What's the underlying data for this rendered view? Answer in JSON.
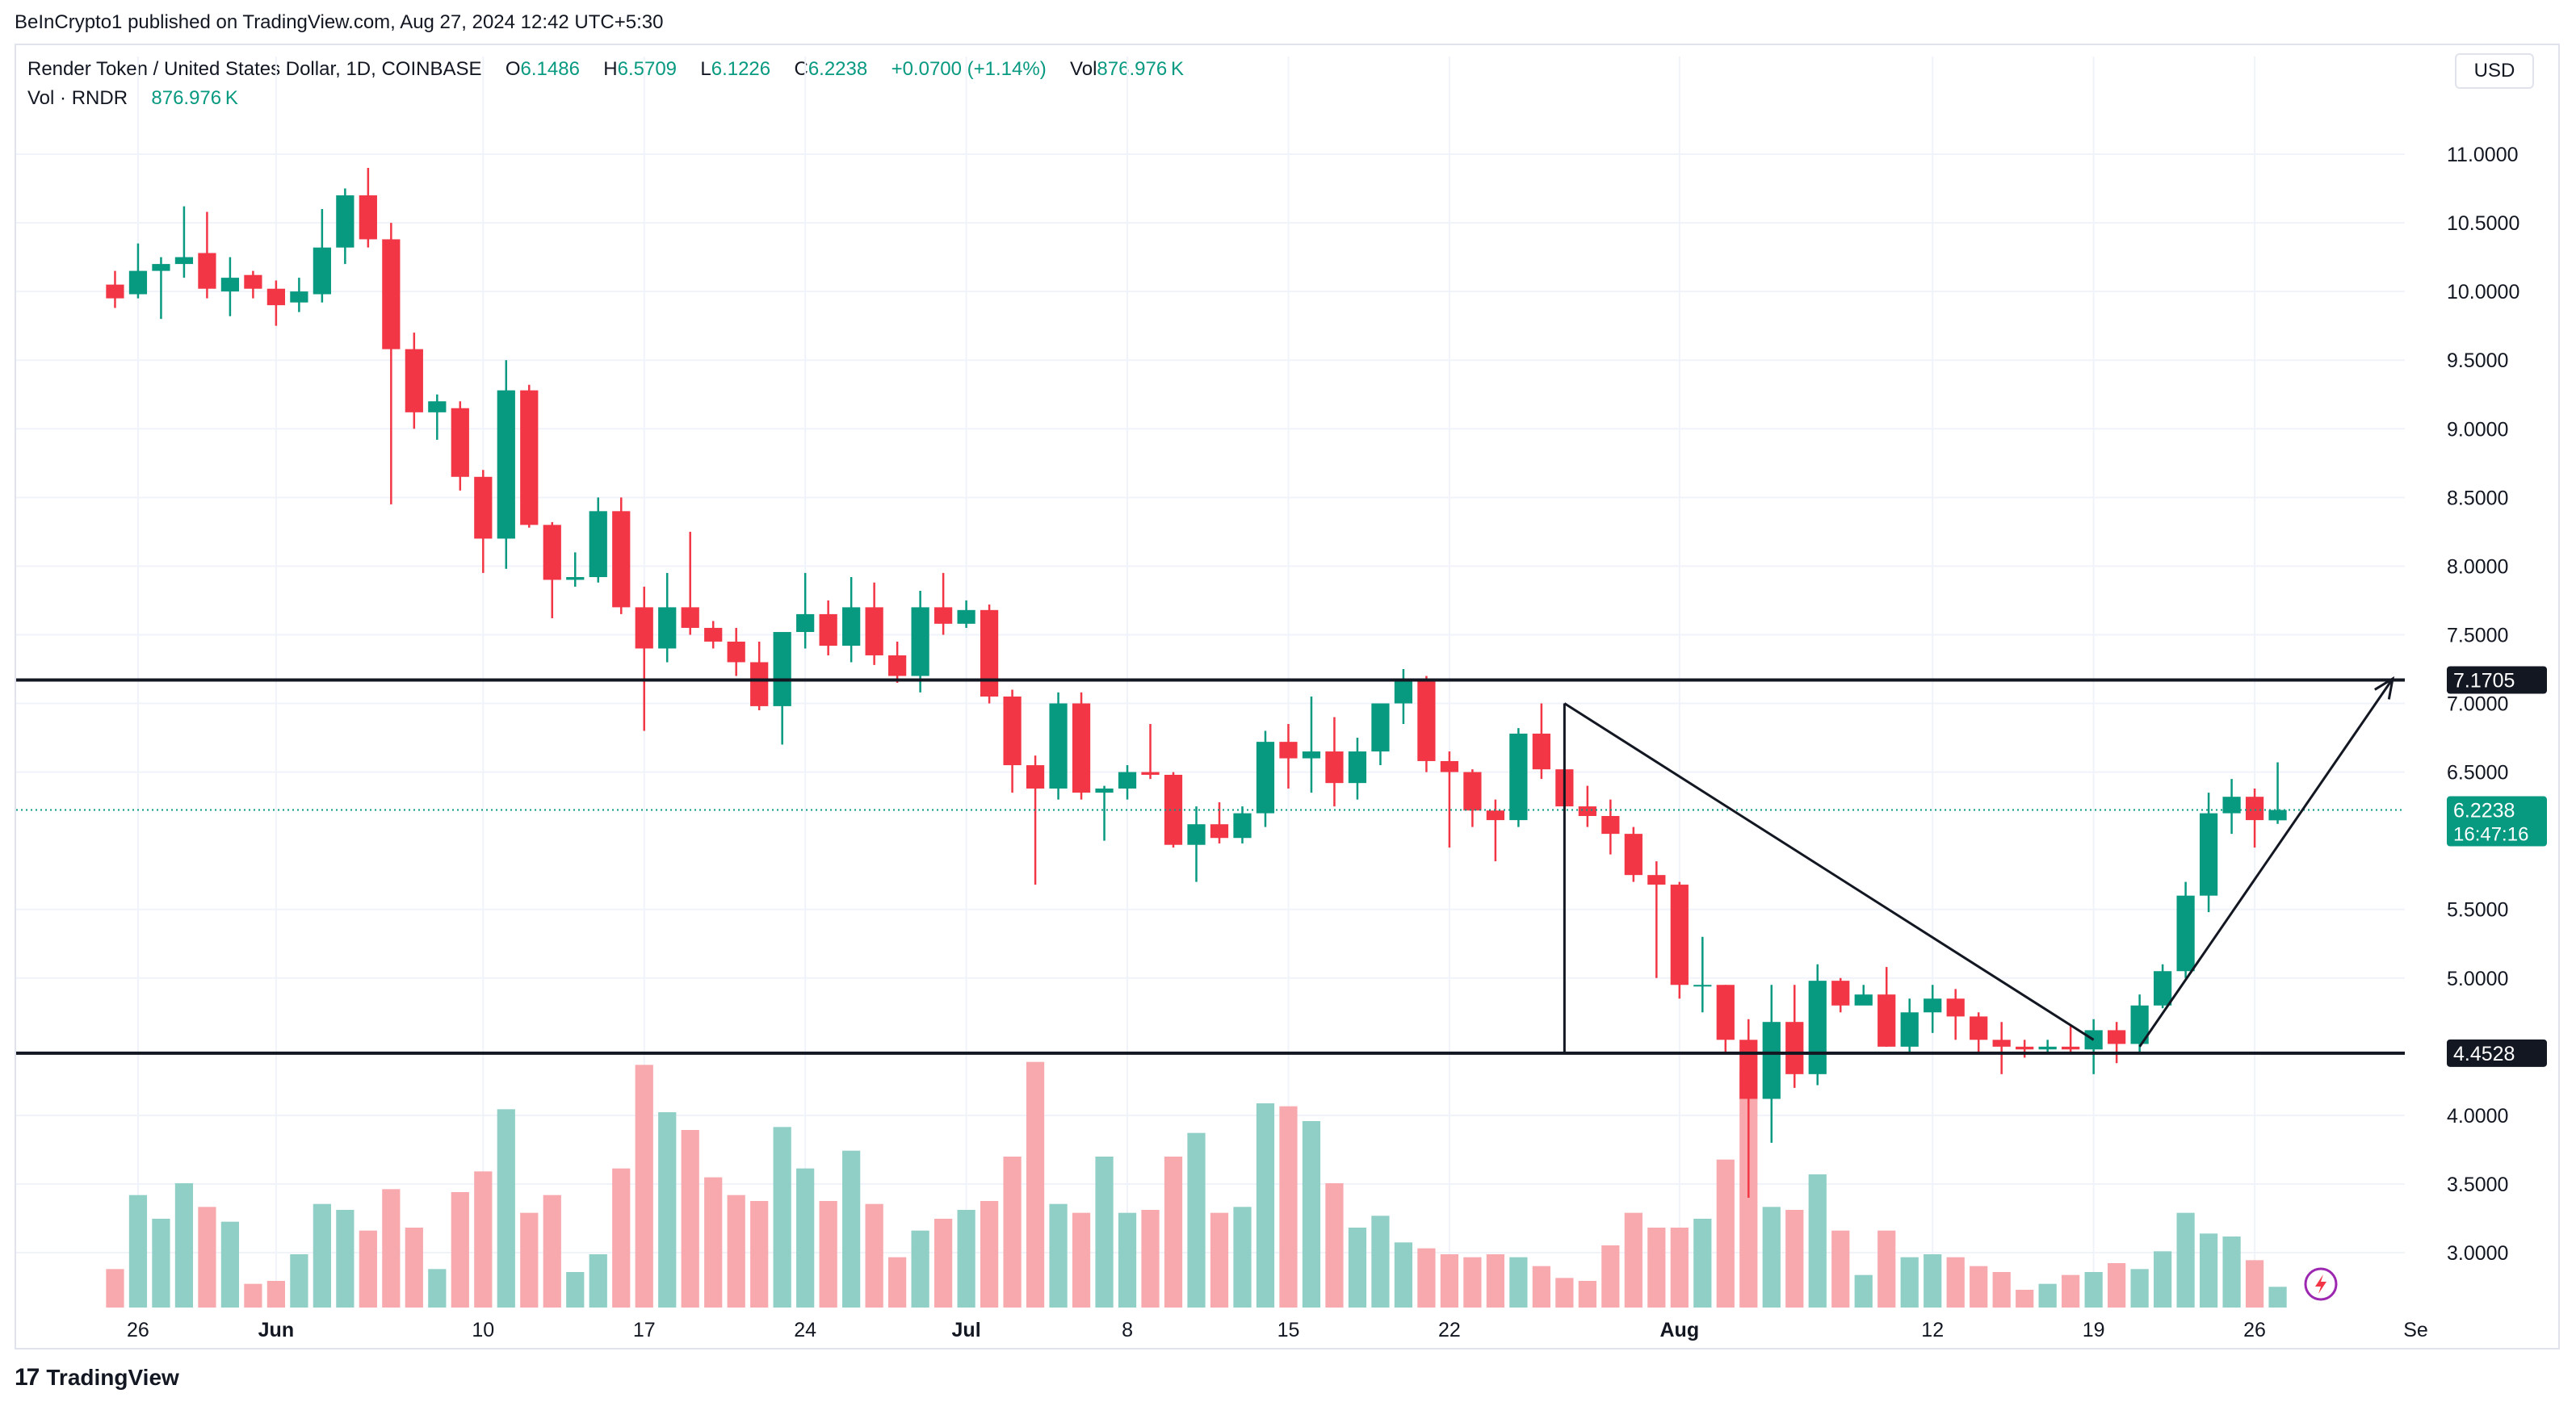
{
  "header": {
    "published": "BeInCrypto1 published on TradingView.com, Aug 27, 2024 12:42 UTC+5:30"
  },
  "legend": {
    "symbol": "Render Token / United States Dollar, 1D, COINBASE",
    "o_label": "O",
    "o": "6.1486",
    "h_label": "H",
    "h": "6.5709",
    "l_label": "L",
    "l": "6.1226",
    "c_label": "C",
    "c": "6.2238",
    "change": "+0.0700 (+1.14%)",
    "vol_label": "Vol",
    "vol": "876.976 K",
    "vol_row_label": "Vol · RNDR",
    "vol_row_value": "876.976 K"
  },
  "currency": "USD",
  "footer": {
    "brand": "TradingView",
    "logo_icon": "tradingview-logo-icon"
  },
  "chart_data": {
    "type": "candlestick",
    "title": "Render Token / United States Dollar, 1D, COINBASE",
    "ylim": [
      2.6,
      11.5
    ],
    "y_ticks": [
      "11.0000",
      "10.5000",
      "10.0000",
      "9.5000",
      "9.0000",
      "8.5000",
      "8.0000",
      "7.5000",
      "7.0000",
      "6.5000",
      "5.5000",
      "5.0000",
      "4.0000",
      "3.5000",
      "3.0000"
    ],
    "x_ticks": [
      {
        "date": "2024-05-26",
        "label": "26"
      },
      {
        "date": "2024-06-01",
        "label": "Jun"
      },
      {
        "date": "2024-06-10",
        "label": "10"
      },
      {
        "date": "2024-06-17",
        "label": "17"
      },
      {
        "date": "2024-06-24",
        "label": "24"
      },
      {
        "date": "2024-07-01",
        "label": "Jul"
      },
      {
        "date": "2024-07-08",
        "label": "8"
      },
      {
        "date": "2024-07-15",
        "label": "15"
      },
      {
        "date": "2024-07-22",
        "label": "22"
      },
      {
        "date": "2024-08-01",
        "label": "Aug"
      },
      {
        "date": "2024-08-12",
        "label": "12"
      },
      {
        "date": "2024-08-19",
        "label": "19"
      },
      {
        "date": "2024-08-26",
        "label": "26"
      },
      {
        "date": "2024-09-02",
        "label": "Se"
      }
    ],
    "colors": {
      "up": "#089981",
      "down": "#f23645",
      "vol_up": "#8fcfc6",
      "vol_down": "#f7a9ae",
      "line": "#131722"
    },
    "price_labels": [
      {
        "value": 7.1705,
        "text": "7.1705",
        "style": "dark"
      },
      {
        "value": 4.4528,
        "text": "4.4528",
        "style": "dark"
      },
      {
        "value": 6.2238,
        "text": "6.2238",
        "sub": "16:47:16",
        "style": "last"
      }
    ],
    "horizontal_lines": [
      7.1705,
      4.4528
    ],
    "last_price": 6.2238,
    "drawings": [
      {
        "type": "line",
        "from": {
          "date": "2024-07-27",
          "price": 7.0
        },
        "to": {
          "date": "2024-07-27",
          "price": 4.4528
        }
      },
      {
        "type": "line",
        "from": {
          "date": "2024-07-27",
          "price": 7.0
        },
        "to": {
          "date": "2024-08-19",
          "price": 4.55
        }
      },
      {
        "type": "arrow",
        "from": {
          "date": "2024-08-21",
          "price": 4.5
        },
        "to": {
          "date": "2024-09-01",
          "price": 7.18
        }
      }
    ],
    "volume_scale_max": 4.5,
    "candles": [
      {
        "date": "2024-05-25",
        "o": 10.05,
        "h": 10.15,
        "l": 9.88,
        "c": 9.95,
        "v": 0.65
      },
      {
        "date": "2024-05-26",
        "o": 9.98,
        "h": 10.35,
        "l": 9.95,
        "c": 10.15,
        "v": 1.9
      },
      {
        "date": "2024-05-27",
        "o": 10.15,
        "h": 10.25,
        "l": 9.8,
        "c": 10.2,
        "v": 1.5
      },
      {
        "date": "2024-05-28",
        "o": 10.2,
        "h": 10.62,
        "l": 10.1,
        "c": 10.25,
        "v": 2.1
      },
      {
        "date": "2024-05-29",
        "o": 10.28,
        "h": 10.58,
        "l": 9.95,
        "c": 10.02,
        "v": 1.7
      },
      {
        "date": "2024-05-30",
        "o": 10.0,
        "h": 10.25,
        "l": 9.82,
        "c": 10.1,
        "v": 1.45
      },
      {
        "date": "2024-05-31",
        "o": 10.12,
        "h": 10.15,
        "l": 9.95,
        "c": 10.02,
        "v": 0.4
      },
      {
        "date": "2024-06-01",
        "o": 10.02,
        "h": 10.08,
        "l": 9.75,
        "c": 9.9,
        "v": 0.45
      },
      {
        "date": "2024-06-02",
        "o": 9.92,
        "h": 10.1,
        "l": 9.85,
        "c": 10.0,
        "v": 0.9
      },
      {
        "date": "2024-06-03",
        "o": 9.98,
        "h": 10.6,
        "l": 9.92,
        "c": 10.32,
        "v": 1.75
      },
      {
        "date": "2024-06-04",
        "o": 10.32,
        "h": 10.75,
        "l": 10.2,
        "c": 10.7,
        "v": 1.65
      },
      {
        "date": "2024-06-05",
        "o": 10.7,
        "h": 10.9,
        "l": 10.32,
        "c": 10.38,
        "v": 1.3
      },
      {
        "date": "2024-06-06",
        "o": 10.38,
        "h": 10.5,
        "l": 8.45,
        "c": 9.58,
        "v": 2.0
      },
      {
        "date": "2024-06-07",
        "o": 9.58,
        "h": 9.7,
        "l": 9.0,
        "c": 9.12,
        "v": 1.35
      },
      {
        "date": "2024-06-08",
        "o": 9.12,
        "h": 9.25,
        "l": 8.92,
        "c": 9.2,
        "v": 0.65
      },
      {
        "date": "2024-06-09",
        "o": 9.15,
        "h": 9.2,
        "l": 8.55,
        "c": 8.65,
        "v": 1.95
      },
      {
        "date": "2024-06-10",
        "o": 8.65,
        "h": 8.7,
        "l": 7.95,
        "c": 8.2,
        "v": 2.3
      },
      {
        "date": "2024-06-11",
        "o": 8.2,
        "h": 9.5,
        "l": 7.98,
        "c": 9.28,
        "v": 3.35
      },
      {
        "date": "2024-06-12",
        "o": 9.28,
        "h": 9.32,
        "l": 8.28,
        "c": 8.3,
        "v": 1.6
      },
      {
        "date": "2024-06-13",
        "o": 8.3,
        "h": 8.32,
        "l": 7.62,
        "c": 7.9,
        "v": 1.9
      },
      {
        "date": "2024-06-14",
        "o": 7.9,
        "h": 8.1,
        "l": 7.85,
        "c": 7.92,
        "v": 0.6
      },
      {
        "date": "2024-06-15",
        "o": 7.92,
        "h": 8.5,
        "l": 7.88,
        "c": 8.4,
        "v": 0.9
      },
      {
        "date": "2024-06-16",
        "o": 8.4,
        "h": 8.5,
        "l": 7.65,
        "c": 7.7,
        "v": 2.35
      },
      {
        "date": "2024-06-17",
        "o": 7.7,
        "h": 7.85,
        "l": 6.8,
        "c": 7.4,
        "v": 4.1
      },
      {
        "date": "2024-06-18",
        "o": 7.4,
        "h": 7.95,
        "l": 7.3,
        "c": 7.7,
        "v": 3.3
      },
      {
        "date": "2024-06-19",
        "o": 7.7,
        "h": 8.25,
        "l": 7.5,
        "c": 7.55,
        "v": 3.0
      },
      {
        "date": "2024-06-20",
        "o": 7.55,
        "h": 7.6,
        "l": 7.4,
        "c": 7.45,
        "v": 2.2
      },
      {
        "date": "2024-06-21",
        "o": 7.45,
        "h": 7.55,
        "l": 7.2,
        "c": 7.3,
        "v": 1.9
      },
      {
        "date": "2024-06-22",
        "o": 7.3,
        "h": 7.45,
        "l": 6.95,
        "c": 6.98,
        "v": 1.8
      },
      {
        "date": "2024-06-23",
        "o": 6.98,
        "h": 7.5,
        "l": 6.7,
        "c": 7.52,
        "v": 3.05
      },
      {
        "date": "2024-06-24",
        "o": 7.52,
        "h": 7.95,
        "l": 7.4,
        "c": 7.65,
        "v": 2.35
      },
      {
        "date": "2024-06-25",
        "o": 7.65,
        "h": 7.75,
        "l": 7.35,
        "c": 7.42,
        "v": 1.8
      },
      {
        "date": "2024-06-26",
        "o": 7.42,
        "h": 7.92,
        "l": 7.3,
        "c": 7.7,
        "v": 2.65
      },
      {
        "date": "2024-06-27",
        "o": 7.7,
        "h": 7.88,
        "l": 7.28,
        "c": 7.35,
        "v": 1.75
      },
      {
        "date": "2024-06-28",
        "o": 7.35,
        "h": 7.45,
        "l": 7.15,
        "c": 7.2,
        "v": 0.85
      },
      {
        "date": "2024-06-29",
        "o": 7.2,
        "h": 7.82,
        "l": 7.08,
        "c": 7.7,
        "v": 1.3
      },
      {
        "date": "2024-06-30",
        "o": 7.7,
        "h": 7.95,
        "l": 7.5,
        "c": 7.58,
        "v": 1.5
      },
      {
        "date": "2024-07-01",
        "o": 7.58,
        "h": 7.75,
        "l": 7.55,
        "c": 7.68,
        "v": 1.65
      },
      {
        "date": "2024-07-02",
        "o": 7.68,
        "h": 7.72,
        "l": 7.0,
        "c": 7.05,
        "v": 1.8
      },
      {
        "date": "2024-07-03",
        "o": 7.05,
        "h": 7.1,
        "l": 6.35,
        "c": 6.55,
        "v": 2.55
      },
      {
        "date": "2024-07-04",
        "o": 6.55,
        "h": 6.62,
        "l": 5.68,
        "c": 6.38,
        "v": 4.15
      },
      {
        "date": "2024-07-05",
        "o": 6.38,
        "h": 7.08,
        "l": 6.3,
        "c": 7.0,
        "v": 1.75
      },
      {
        "date": "2024-07-06",
        "o": 7.0,
        "h": 7.08,
        "l": 6.3,
        "c": 6.35,
        "v": 1.6
      },
      {
        "date": "2024-07-07",
        "o": 6.35,
        "h": 6.4,
        "l": 6.0,
        "c": 6.38,
        "v": 2.55
      },
      {
        "date": "2024-07-08",
        "o": 6.38,
        "h": 6.55,
        "l": 6.3,
        "c": 6.5,
        "v": 1.6
      },
      {
        "date": "2024-07-09",
        "o": 6.5,
        "h": 6.85,
        "l": 6.45,
        "c": 6.48,
        "v": 1.65
      },
      {
        "date": "2024-07-10",
        "o": 6.48,
        "h": 6.5,
        "l": 5.95,
        "c": 5.97,
        "v": 2.55
      },
      {
        "date": "2024-07-11",
        "o": 5.97,
        "h": 6.25,
        "l": 5.7,
        "c": 6.12,
        "v": 2.95
      },
      {
        "date": "2024-07-12",
        "o": 6.12,
        "h": 6.28,
        "l": 5.98,
        "c": 6.02,
        "v": 1.6
      },
      {
        "date": "2024-07-13",
        "o": 6.02,
        "h": 6.25,
        "l": 5.98,
        "c": 6.2,
        "v": 1.7
      },
      {
        "date": "2024-07-14",
        "o": 6.2,
        "h": 6.8,
        "l": 6.1,
        "c": 6.72,
        "v": 3.45
      },
      {
        "date": "2024-07-15",
        "o": 6.72,
        "h": 6.85,
        "l": 6.38,
        "c": 6.6,
        "v": 3.4
      },
      {
        "date": "2024-07-16",
        "o": 6.6,
        "h": 7.05,
        "l": 6.35,
        "c": 6.65,
        "v": 3.15
      },
      {
        "date": "2024-07-17",
        "o": 6.65,
        "h": 6.9,
        "l": 6.25,
        "c": 6.42,
        "v": 2.1
      },
      {
        "date": "2024-07-18",
        "o": 6.42,
        "h": 6.75,
        "l": 6.3,
        "c": 6.65,
        "v": 1.35
      },
      {
        "date": "2024-07-19",
        "o": 6.65,
        "h": 7.0,
        "l": 6.55,
        "c": 7.0,
        "v": 1.55
      },
      {
        "date": "2024-07-20",
        "o": 7.0,
        "h": 7.25,
        "l": 6.85,
        "c": 7.17,
        "v": 1.1
      },
      {
        "date": "2024-07-21",
        "o": 7.17,
        "h": 7.2,
        "l": 6.5,
        "c": 6.58,
        "v": 1.0
      },
      {
        "date": "2024-07-22",
        "o": 6.58,
        "h": 6.65,
        "l": 5.95,
        "c": 6.5,
        "v": 0.9
      },
      {
        "date": "2024-07-23",
        "o": 6.5,
        "h": 6.52,
        "l": 6.1,
        "c": 6.22,
        "v": 0.85
      },
      {
        "date": "2024-07-24",
        "o": 6.22,
        "h": 6.3,
        "l": 5.85,
        "c": 6.15,
        "v": 0.9
      },
      {
        "date": "2024-07-25",
        "o": 6.15,
        "h": 6.82,
        "l": 6.1,
        "c": 6.78,
        "v": 0.85
      },
      {
        "date": "2024-07-26",
        "o": 6.78,
        "h": 7.0,
        "l": 6.45,
        "c": 6.52,
        "v": 0.7
      },
      {
        "date": "2024-07-27",
        "o": 6.52,
        "h": 6.6,
        "l": 6.2,
        "c": 6.25,
        "v": 0.5
      },
      {
        "date": "2024-07-28",
        "o": 6.25,
        "h": 6.4,
        "l": 6.1,
        "c": 6.18,
        "v": 0.45
      },
      {
        "date": "2024-07-29",
        "o": 6.18,
        "h": 6.3,
        "l": 5.9,
        "c": 6.05,
        "v": 1.05
      },
      {
        "date": "2024-07-30",
        "o": 6.05,
        "h": 6.1,
        "l": 5.7,
        "c": 5.75,
        "v": 1.6
      },
      {
        "date": "2024-07-31",
        "o": 5.75,
        "h": 5.85,
        "l": 5.0,
        "c": 5.68,
        "v": 1.35
      },
      {
        "date": "2024-08-01",
        "o": 5.68,
        "h": 5.7,
        "l": 4.85,
        "c": 4.95,
        "v": 1.35
      },
      {
        "date": "2024-08-02",
        "o": 4.95,
        "h": 5.3,
        "l": 4.75,
        "c": 4.95,
        "v": 1.5
      },
      {
        "date": "2024-08-03",
        "o": 4.95,
        "h": 4.95,
        "l": 4.45,
        "c": 4.55,
        "v": 2.5
      },
      {
        "date": "2024-08-04",
        "o": 4.55,
        "h": 4.7,
        "l": 3.4,
        "c": 4.12,
        "v": 4.0
      },
      {
        "date": "2024-08-05",
        "o": 4.12,
        "h": 4.95,
        "l": 3.8,
        "c": 4.68,
        "v": 1.7
      },
      {
        "date": "2024-08-06",
        "o": 4.68,
        "h": 4.95,
        "l": 4.2,
        "c": 4.3,
        "v": 1.65
      },
      {
        "date": "2024-08-07",
        "o": 4.3,
        "h": 5.1,
        "l": 4.22,
        "c": 4.98,
        "v": 2.25
      },
      {
        "date": "2024-08-08",
        "o": 4.98,
        "h": 5.0,
        "l": 4.75,
        "c": 4.8,
        "v": 1.3
      },
      {
        "date": "2024-08-09",
        "o": 4.8,
        "h": 4.95,
        "l": 4.85,
        "c": 4.88,
        "v": 0.55
      },
      {
        "date": "2024-08-10",
        "o": 4.88,
        "h": 5.08,
        "l": 4.5,
        "c": 4.5,
        "v": 1.3
      },
      {
        "date": "2024-08-11",
        "o": 4.5,
        "h": 4.85,
        "l": 4.45,
        "c": 4.75,
        "v": 0.85
      },
      {
        "date": "2024-08-12",
        "o": 4.75,
        "h": 4.95,
        "l": 4.6,
        "c": 4.85,
        "v": 0.9
      },
      {
        "date": "2024-08-13",
        "o": 4.85,
        "h": 4.92,
        "l": 4.55,
        "c": 4.72,
        "v": 0.85
      },
      {
        "date": "2024-08-14",
        "o": 4.72,
        "h": 4.75,
        "l": 4.45,
        "c": 4.55,
        "v": 0.7
      },
      {
        "date": "2024-08-15",
        "o": 4.55,
        "h": 4.68,
        "l": 4.3,
        "c": 4.5,
        "v": 0.6
      },
      {
        "date": "2024-08-16",
        "o": 4.5,
        "h": 4.55,
        "l": 4.42,
        "c": 4.48,
        "v": 0.3
      },
      {
        "date": "2024-08-17",
        "o": 4.48,
        "h": 4.55,
        "l": 4.45,
        "c": 4.5,
        "v": 0.4
      },
      {
        "date": "2024-08-18",
        "o": 4.5,
        "h": 4.65,
        "l": 4.45,
        "c": 4.48,
        "v": 0.55
      },
      {
        "date": "2024-08-19",
        "o": 4.48,
        "h": 4.7,
        "l": 4.3,
        "c": 4.62,
        "v": 0.6
      },
      {
        "date": "2024-08-20",
        "o": 4.62,
        "h": 4.68,
        "l": 4.38,
        "c": 4.52,
        "v": 0.75
      },
      {
        "date": "2024-08-21",
        "o": 4.52,
        "h": 4.88,
        "l": 4.45,
        "c": 4.8,
        "v": 0.65
      },
      {
        "date": "2024-08-22",
        "o": 4.8,
        "h": 5.1,
        "l": 4.78,
        "c": 5.05,
        "v": 0.95
      },
      {
        "date": "2024-08-23",
        "o": 5.05,
        "h": 5.7,
        "l": 5.0,
        "c": 5.6,
        "v": 1.6
      },
      {
        "date": "2024-08-24",
        "o": 5.6,
        "h": 6.35,
        "l": 5.48,
        "c": 6.2,
        "v": 1.25
      },
      {
        "date": "2024-08-25",
        "o": 6.2,
        "h": 6.45,
        "l": 6.05,
        "c": 6.32,
        "v": 1.2
      },
      {
        "date": "2024-08-26",
        "o": 6.32,
        "h": 6.38,
        "l": 5.95,
        "c": 6.15,
        "v": 0.8
      },
      {
        "date": "2024-08-27",
        "o": 6.1486,
        "h": 6.5709,
        "l": 6.1226,
        "c": 6.2238,
        "v": 0.35
      }
    ]
  }
}
